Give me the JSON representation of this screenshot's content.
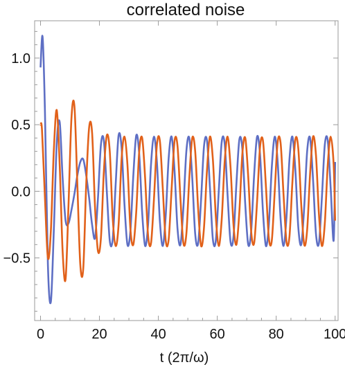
{
  "chart_data": {
    "type": "line",
    "title": "correlated noise",
    "xlabel": "t (2π/ω)",
    "ylabel": "",
    "xlim": [
      -2,
      101
    ],
    "ylim": [
      -0.97,
      1.28
    ],
    "xticks": [
      0,
      20,
      40,
      60,
      80,
      100
    ],
    "xtick_labels": [
      "0",
      "20",
      "40",
      "60",
      "80",
      "100"
    ],
    "yticks": [
      -0.5,
      0.0,
      0.5,
      1.0
    ],
    "ytick_labels": [
      "−0.5",
      "0.0",
      "0.5",
      "1.0"
    ],
    "grid": false,
    "legend": "none",
    "series": [
      {
        "color": "#5e6fc4",
        "x": [
          0.0,
          0.7,
          1.5,
          2.5,
          3.5,
          4.5,
          5.5,
          6.5,
          7.5,
          8.5,
          9.5,
          10.5,
          11.5,
          12.5,
          13.5,
          14.5,
          15.5,
          16.5,
          17.5,
          18.5,
          19.5,
          20.5,
          21.5,
          22.5,
          23.5,
          24.5,
          25.5,
          26.5,
          27.5,
          28.5,
          29.5,
          30.5,
          31.5,
          32.5,
          33.5,
          34.5,
          35.5,
          36.5,
          37.5,
          38.5,
          39.5,
          40.5,
          41.5,
          42.5,
          43.5,
          44.5,
          45.5,
          46.5,
          47.5,
          48.5,
          49.5,
          50.5,
          51.5,
          52.5,
          53.5,
          54.5,
          55.5,
          56.5,
          57.5,
          58.5,
          59.5,
          60.5,
          61.5,
          62.5,
          63.5,
          64.5,
          65.5,
          66.5,
          67.5,
          68.5,
          69.5,
          70.5,
          71.5,
          72.5,
          73.5,
          74.5,
          75.5,
          76.5,
          77.5,
          78.5,
          79.5,
          80.5,
          81.5,
          82.5,
          83.5,
          84.5,
          85.5,
          86.5,
          87.5,
          88.5,
          89.5,
          90.5,
          91.5,
          92.5,
          93.5,
          94.5,
          95.5,
          96.5,
          97.5,
          98.5,
          99.5,
          100.0
        ],
        "y": [
          0.93,
          1.16,
          0.6,
          -0.55,
          -0.83,
          -0.3,
          0.36,
          0.52,
          0.1,
          -0.22,
          -0.24,
          -0.14,
          -0.02,
          0.12,
          0.22,
          0.24,
          0.12,
          -0.05,
          -0.25,
          -0.35,
          -0.05,
          0.35,
          0.38,
          0.0,
          -0.37,
          -0.36,
          0.05,
          0.42,
          0.33,
          -0.1,
          -0.4,
          -0.3,
          0.12,
          0.42,
          0.28,
          -0.16,
          -0.41,
          -0.25,
          0.2,
          0.41,
          0.22,
          -0.22,
          -0.41,
          -0.18,
          0.25,
          0.41,
          0.15,
          -0.28,
          -0.4,
          -0.12,
          0.3,
          0.4,
          0.1,
          -0.32,
          -0.39,
          -0.06,
          0.34,
          0.38,
          0.03,
          -0.36,
          -0.37,
          0.0,
          0.37,
          0.36,
          -0.03,
          -0.38,
          -0.34,
          0.06,
          0.39,
          0.32,
          -0.1,
          -0.4,
          -0.3,
          0.12,
          0.41,
          0.28,
          -0.15,
          -0.41,
          -0.25,
          0.18,
          0.41,
          0.22,
          -0.21,
          -0.41,
          -0.19,
          0.24,
          0.41,
          0.16,
          -0.27,
          -0.4,
          -0.12,
          0.3,
          0.4,
          0.09,
          -0.32,
          -0.39,
          -0.05,
          0.35,
          0.38,
          0.02,
          -0.37,
          0.22
        ]
      },
      {
        "color": "#e1611a",
        "x": [
          0.0,
          0.5,
          1.5,
          2.5,
          3.5,
          4.5,
          5.5,
          6.5,
          7.5,
          8.5,
          9.5,
          10.5,
          11.5,
          12.5,
          13.5,
          14.5,
          15.5,
          16.5,
          17.5,
          18.5,
          19.5,
          20.5,
          21.5,
          22.5,
          23.5,
          24.5,
          25.5,
          26.5,
          27.5,
          28.5,
          29.5,
          30.5,
          31.5,
          32.5,
          33.5,
          34.5,
          35.5,
          36.5,
          37.5,
          38.5,
          39.5,
          40.5,
          41.5,
          42.5,
          43.5,
          44.5,
          45.5,
          46.5,
          47.5,
          48.5,
          49.5,
          50.5,
          51.5,
          52.5,
          53.5,
          54.5,
          55.5,
          56.5,
          57.5,
          58.5,
          59.5,
          60.5,
          61.5,
          62.5,
          63.5,
          64.5,
          65.5,
          66.5,
          67.5,
          68.5,
          69.5,
          70.5,
          71.5,
          72.5,
          73.5,
          74.5,
          75.5,
          76.5,
          77.5,
          78.5,
          79.5,
          80.5,
          81.5,
          82.5,
          83.5,
          84.5,
          85.5,
          86.5,
          87.5,
          88.5,
          89.5,
          90.5,
          91.5,
          92.5,
          93.5,
          94.5,
          95.5,
          96.5,
          97.5,
          98.5,
          99.5,
          100.0
        ],
        "y": [
          0.5,
          0.46,
          -0.05,
          -0.5,
          -0.3,
          0.3,
          0.61,
          0.2,
          -0.45,
          -0.66,
          -0.1,
          0.55,
          0.64,
          0.05,
          -0.55,
          -0.58,
          0.05,
          0.48,
          0.44,
          -0.12,
          -0.45,
          -0.35,
          0.15,
          0.42,
          0.3,
          -0.2,
          -0.41,
          -0.25,
          0.24,
          0.41,
          0.2,
          -0.28,
          -0.4,
          -0.15,
          0.3,
          0.4,
          0.1,
          -0.33,
          -0.39,
          -0.06,
          0.35,
          0.38,
          0.02,
          -0.37,
          -0.36,
          0.02,
          0.38,
          0.34,
          -0.06,
          -0.39,
          -0.32,
          0.1,
          0.4,
          0.3,
          -0.13,
          -0.41,
          -0.27,
          0.16,
          0.41,
          0.24,
          -0.19,
          -0.41,
          -0.21,
          0.22,
          0.41,
          0.18,
          -0.25,
          -0.4,
          -0.15,
          0.28,
          0.4,
          0.11,
          -0.3,
          -0.39,
          -0.08,
          0.33,
          0.38,
          0.04,
          -0.35,
          -0.37,
          0.0,
          0.37,
          0.36,
          -0.03,
          -0.38,
          -0.34,
          0.07,
          0.39,
          0.32,
          -0.1,
          -0.4,
          -0.29,
          0.13,
          0.41,
          0.27,
          -0.17,
          -0.41,
          -0.24,
          0.2,
          0.41,
          0.2,
          -0.22
        ]
      }
    ]
  }
}
